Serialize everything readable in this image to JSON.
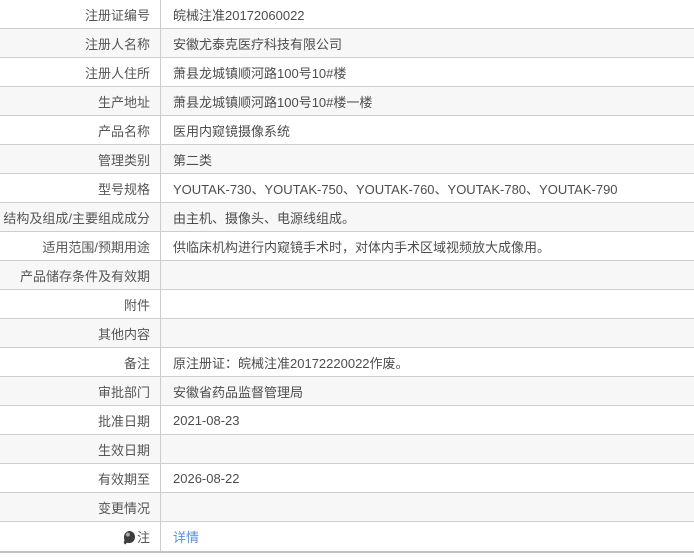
{
  "colors": {
    "row_bg": "#ffffff",
    "row_alt_bg": "#f7f7f7",
    "row_border": "#cecece",
    "column_divider": "#cccccc",
    "bottom_border": "#c2c2c2",
    "label_text": "#555555",
    "value_text": "#4d4d4d",
    "link": "#5b8edc"
  },
  "table": {
    "rows": [
      {
        "label": "注册证编号",
        "value": "皖械注准20172060022"
      },
      {
        "label": "注册人名称",
        "value": "安徽尤泰克医疗科技有限公司"
      },
      {
        "label": "注册人住所",
        "value": "萧县龙城镇顺河路100号10#楼"
      },
      {
        "label": "生产地址",
        "value": "萧县龙城镇顺河路100号10#楼一楼"
      },
      {
        "label": "产品名称",
        "value": "医用内窥镜摄像系统"
      },
      {
        "label": "管理类别",
        "value": "第二类"
      },
      {
        "label": "型号规格",
        "value": "YOUTAK-730、YOUTAK-750、YOUTAK-760、YOUTAK-780、YOUTAK-790"
      },
      {
        "label": "结构及组成/主要组成成分",
        "value": "由主机、摄像头、电源线组成。"
      },
      {
        "label": "适用范围/预期用途",
        "value": "供临床机构进行内窥镜手术时，对体内手术区域视频放大成像用。"
      },
      {
        "label": "产品储存条件及有效期",
        "value": ""
      },
      {
        "label": "附件",
        "value": ""
      },
      {
        "label": "其他内容",
        "value": ""
      },
      {
        "label": "备注",
        "value": "原注册证：皖械注准20172220022作废。"
      },
      {
        "label": "审批部门",
        "value": "安徽省药品监督管理局"
      },
      {
        "label": "批准日期",
        "value": "2021-08-23"
      },
      {
        "label": "生效日期",
        "value": ""
      },
      {
        "label": "有效期至",
        "value": "2026-08-22"
      },
      {
        "label": "变更情况",
        "value": ""
      },
      {
        "label": "注",
        "label_icon": "bulb-icon",
        "value": "详情",
        "value_is_link": true
      }
    ]
  }
}
